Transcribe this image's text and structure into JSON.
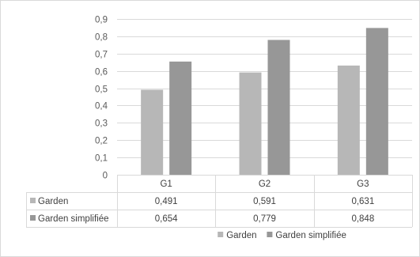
{
  "chart_data": {
    "type": "bar",
    "categories": [
      "G1",
      "G2",
      "G3"
    ],
    "series": [
      {
        "name": "Garden",
        "values": [
          0.491,
          0.591,
          0.631
        ],
        "labels": [
          "0,491",
          "0,591",
          "0,631"
        ],
        "color": "#b7b7b7"
      },
      {
        "name": "Garden simplifiée",
        "values": [
          0.654,
          0.779,
          0.848
        ],
        "labels": [
          "0,654",
          "0,779",
          "0,848"
        ],
        "color": "#979797"
      }
    ],
    "yticks": [
      "0",
      "0,1",
      "0,2",
      "0,3",
      "0,4",
      "0,5",
      "0,6",
      "0,7",
      "0,8",
      "0,9"
    ],
    "ylim": [
      0,
      0.9
    ],
    "ystep": 0.1,
    "grid": true,
    "data_table": true,
    "legend_position": "bottom"
  }
}
